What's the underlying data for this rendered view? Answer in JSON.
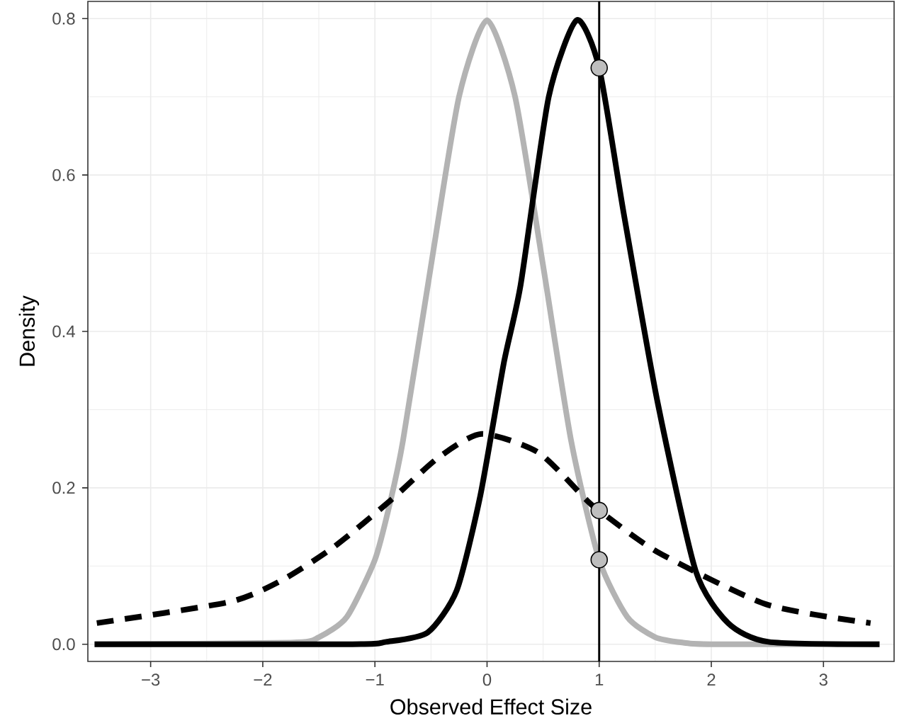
{
  "chart_data": {
    "type": "line",
    "xlabel": "Observed Effect Size",
    "ylabel": "Density",
    "xlim": [
      -3.56,
      3.63
    ],
    "ylim": [
      -0.022,
      0.822
    ],
    "xticks": [
      {
        "value": -3,
        "label": "−3"
      },
      {
        "value": -2,
        "label": "−2"
      },
      {
        "value": -1,
        "label": "−1"
      },
      0,
      1,
      2,
      3
    ],
    "yticks": [
      {
        "value": 0,
        "label": "0.0"
      },
      {
        "value": 0.2,
        "label": "0.2"
      },
      {
        "value": 0.4,
        "label": "0.4"
      },
      {
        "value": 0.6,
        "label": "0.6"
      },
      {
        "value": 0.8,
        "label": "0.8"
      }
    ],
    "grid": true,
    "series": [
      {
        "color": "#b3b3b3",
        "line_style": "solid",
        "x": [
          -3.5,
          -1.75,
          -1.5,
          -1.25,
          -1,
          -0.86,
          -0.75,
          -0.5,
          -0.25,
          0,
          0.25,
          0.5,
          0.75,
          1,
          1.25,
          1.5,
          1.75,
          2,
          3.5
        ],
        "values": [
          0,
          0.002,
          0.009,
          0.035,
          0.108,
          0.184,
          0.26,
          0.484,
          0.7,
          0.798,
          0.7,
          0.484,
          0.26,
          0.108,
          0.035,
          0.009,
          0.002,
          0,
          0
        ]
      },
      {
        "color": "#000000",
        "line_style": "dashed",
        "x": [
          -3.48,
          -2.3,
          -1.84,
          -1.37,
          -0.86,
          -0.44,
          -0.05,
          0.46,
          0.89,
          1,
          1.52,
          2.49,
          3.42
        ],
        "values": [
          0.027,
          0.054,
          0.081,
          0.124,
          0.184,
          0.238,
          0.269,
          0.245,
          0.184,
          0.171,
          0.118,
          0.051,
          0.027
        ]
      },
      {
        "color": "#000000",
        "line_style": "solid",
        "x": [
          -3.5,
          -1.2,
          -0.9,
          -0.53,
          -0.27,
          -0.06,
          0.15,
          0.3,
          0.55,
          0.8,
          1,
          1.22,
          1.52,
          1.86,
          2.15,
          2.51,
          3.5
        ],
        "values": [
          0,
          0,
          0.003,
          0.015,
          0.069,
          0.19,
          0.36,
          0.46,
          0.7,
          0.798,
          0.737,
          0.55,
          0.31,
          0.094,
          0.027,
          0.003,
          0
        ]
      },
      {
        "type": "scatter",
        "marker": "circle",
        "color": "#bebebe",
        "x": [
          1,
          1,
          1
        ],
        "values": [
          0.737,
          0.171,
          0.108
        ]
      }
    ],
    "ref_lines": [
      {
        "axis": "x",
        "value": 1,
        "color": "#000000",
        "line_style": "solid"
      }
    ]
  }
}
